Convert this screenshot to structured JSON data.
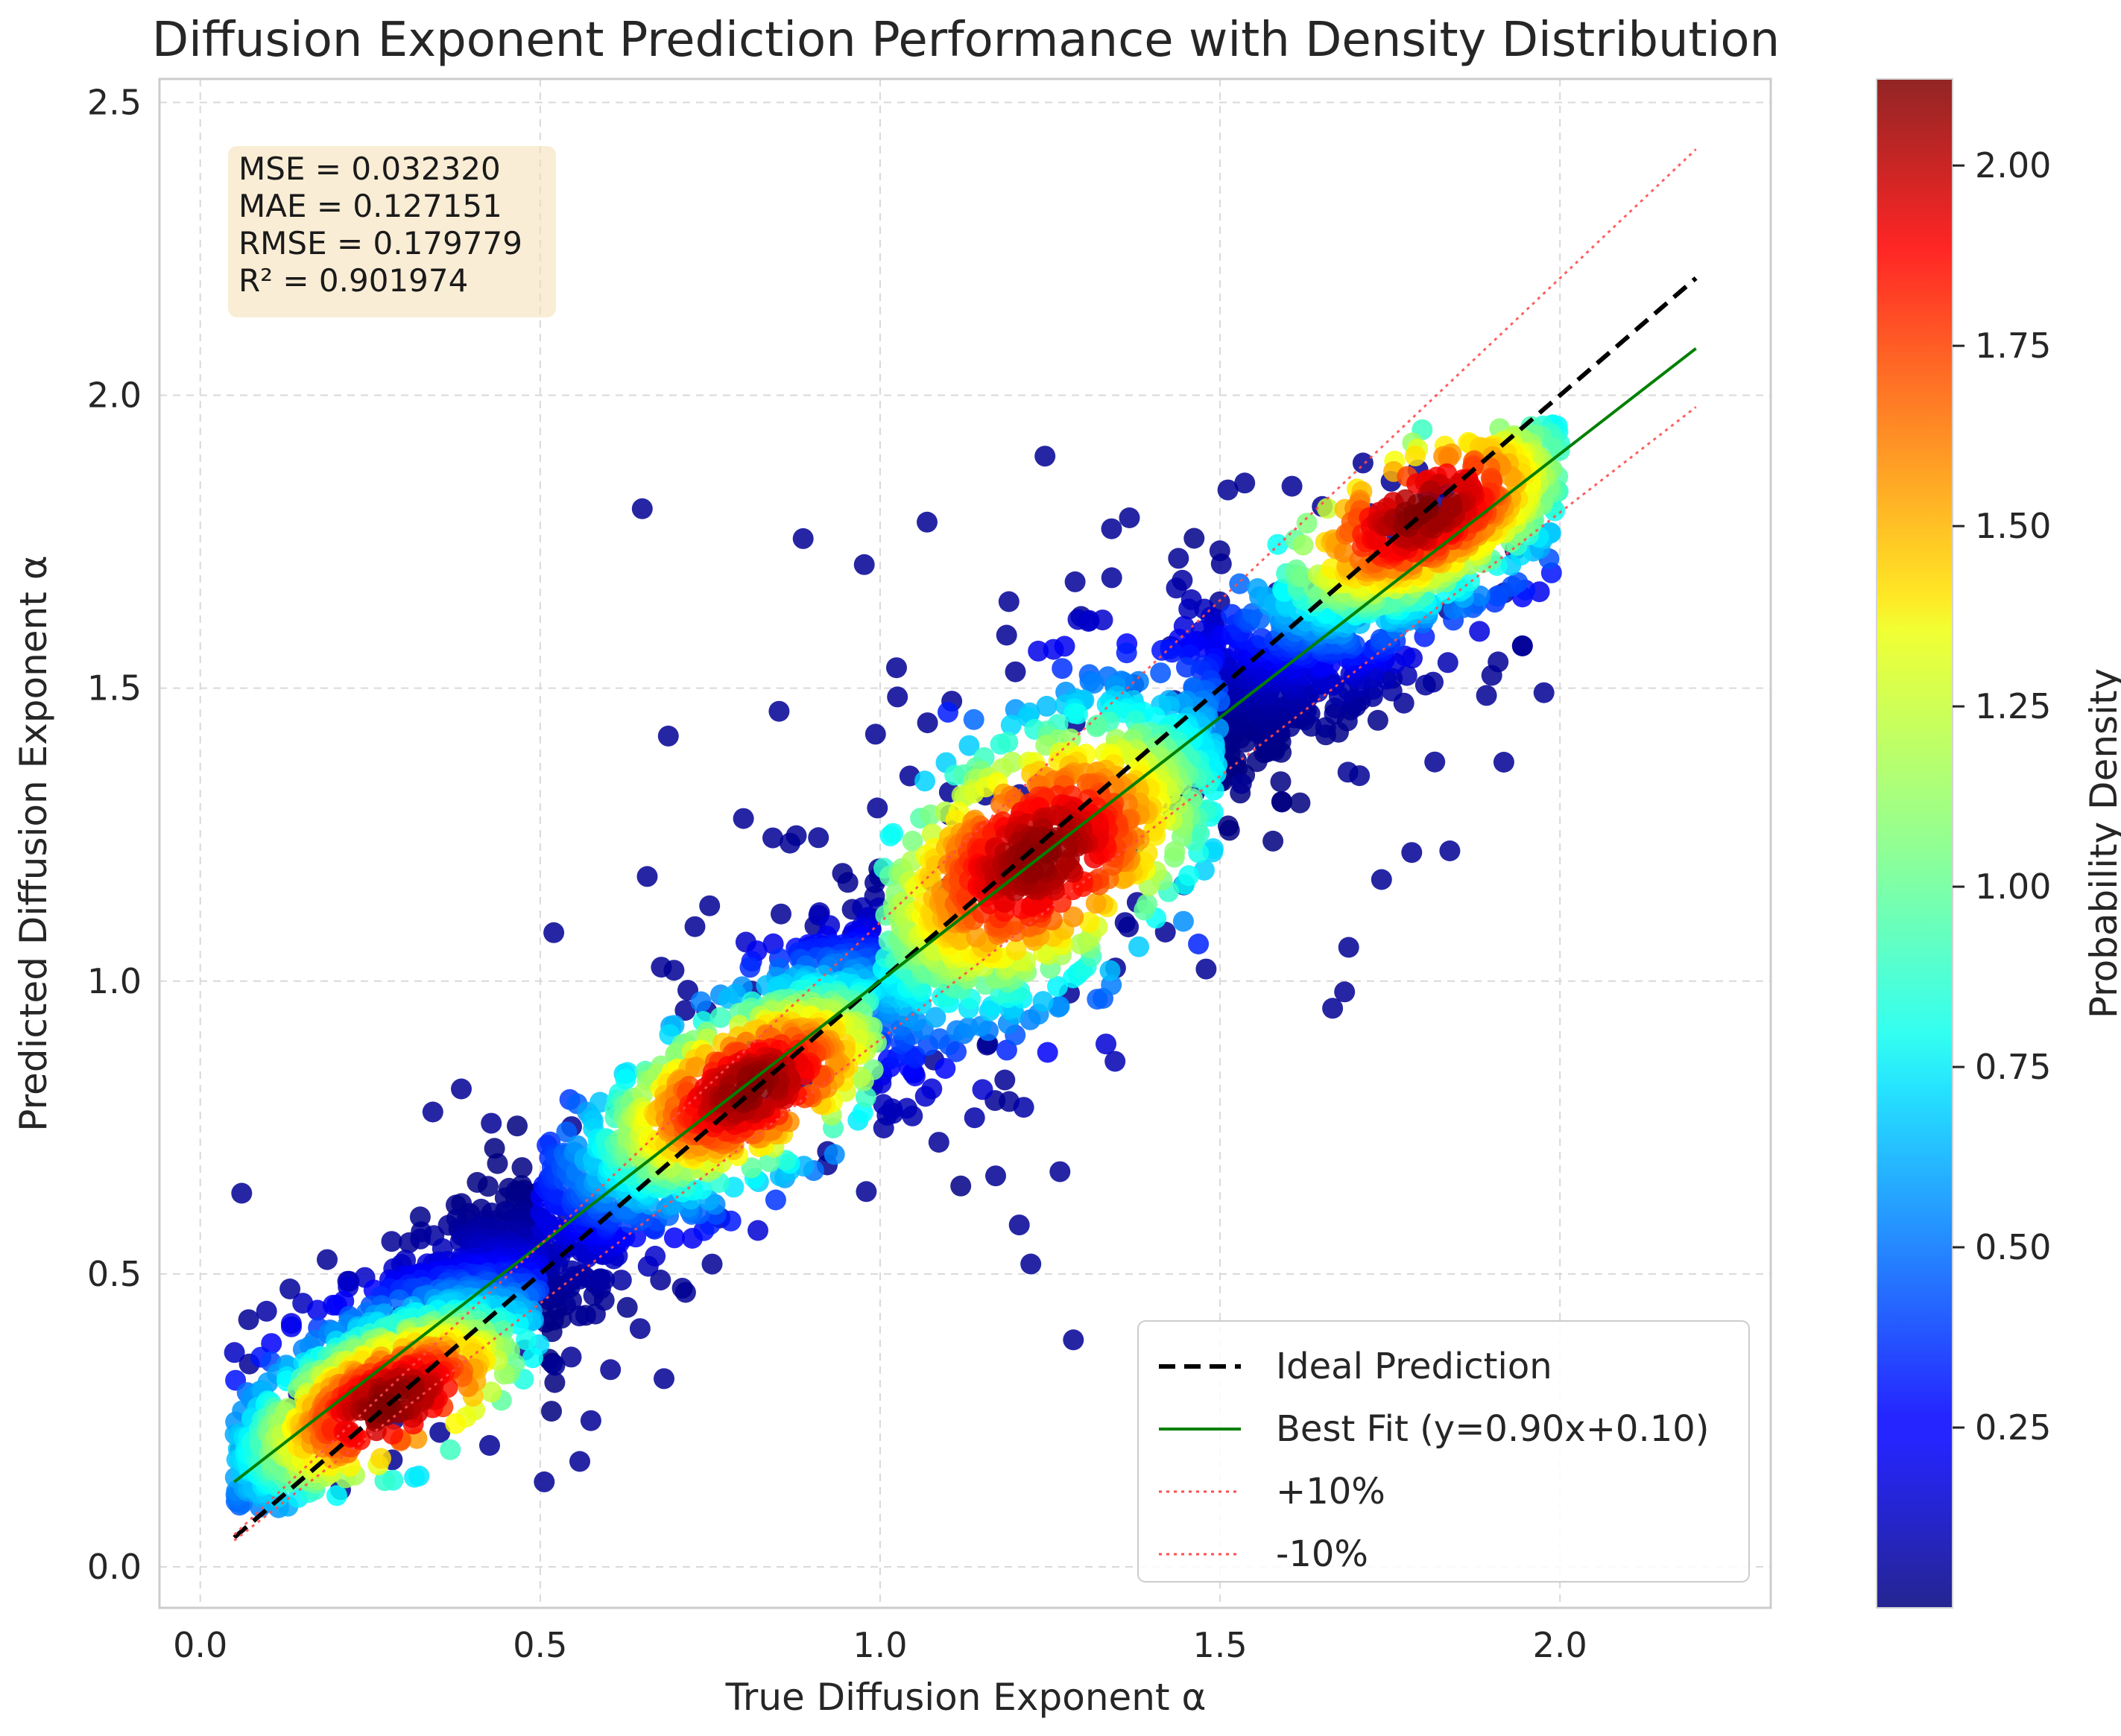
{
  "chart_data": {
    "type": "scatter",
    "title": "Diffusion Exponent Prediction Performance with Density Distribution",
    "xlabel": "True Diffusion Exponent α",
    "ylabel": "Predicted Diffusion Exponent α",
    "xlim": [
      -0.06,
      2.31
    ],
    "ylim": [
      -0.07,
      2.54
    ],
    "xticks": [
      "0.0",
      "0.5",
      "1.0",
      "1.5",
      "2.0"
    ],
    "xtick_values": [
      0.0,
      0.5,
      1.0,
      1.5,
      2.0
    ],
    "yticks": [
      "0.0",
      "0.5",
      "1.0",
      "1.5",
      "2.0",
      "2.5"
    ],
    "ytick_values": [
      0.0,
      0.5,
      1.0,
      1.5,
      2.0,
      2.5
    ],
    "grid": true,
    "legend_position": "lower-right",
    "metrics": [
      "MSE = 0.032320",
      "MAE = 0.127151",
      "RMSE = 0.179779",
      "R² = 0.901974"
    ],
    "series": [
      {
        "name": "Ideal Prediction",
        "kind": "line",
        "style": "dashed",
        "color": "#000000",
        "x": [
          0.05,
          2.2
        ],
        "y": [
          0.05,
          2.2
        ]
      },
      {
        "name": "Best Fit (y=0.90x+0.10)",
        "kind": "line",
        "style": "solid",
        "color": "#008000",
        "x": [
          0.05,
          2.2
        ],
        "y": [
          0.145,
          2.08
        ]
      },
      {
        "name": "+10%",
        "kind": "line",
        "style": "dotted",
        "color": "#ff4d4d",
        "x": [
          0.05,
          2.2
        ],
        "y": [
          0.055,
          2.42
        ]
      },
      {
        "name": "-10%",
        "kind": "line",
        "style": "dotted",
        "color": "#ff4d4d",
        "x": [
          0.05,
          2.2
        ],
        "y": [
          0.045,
          1.98
        ]
      }
    ],
    "density_clusters": [
      {
        "x_range": [
          0.05,
          0.5
        ],
        "center": [
          0.28,
          0.28
        ],
        "spread": 0.09
      },
      {
        "x_range": [
          0.5,
          1.0
        ],
        "center": [
          0.8,
          0.82
        ],
        "spread": 0.1
      },
      {
        "x_range": [
          1.0,
          1.5
        ],
        "center": [
          1.25,
          1.2
        ],
        "spread": 0.15
      },
      {
        "x_range": [
          1.5,
          2.0
        ],
        "center": [
          1.8,
          1.8
        ],
        "spread": 0.1
      }
    ],
    "colorbar": {
      "label": "Probability Density",
      "range": [
        0.0,
        2.12
      ],
      "ticks": [
        "0.25",
        "0.50",
        "0.75",
        "1.00",
        "1.25",
        "1.50",
        "1.75",
        "2.00"
      ],
      "tick_values": [
        0.25,
        0.5,
        0.75,
        1.0,
        1.25,
        1.5,
        1.75,
        2.0
      ],
      "colormap": "jet"
    }
  }
}
